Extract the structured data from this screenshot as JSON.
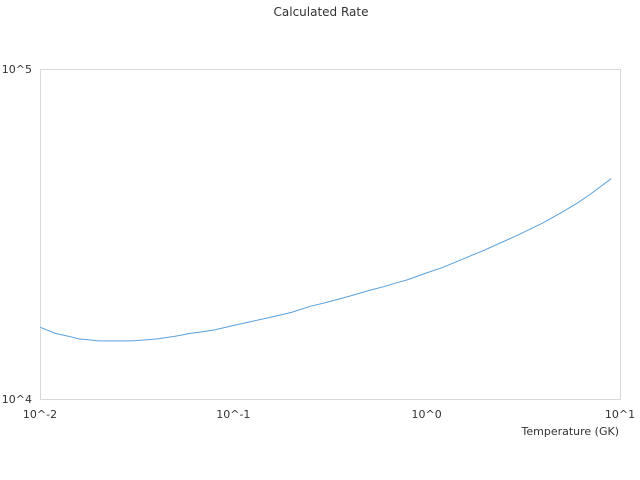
{
  "chart_data": {
    "type": "line",
    "title": "Calculated Rate",
    "xlabel": "Temperature (GK)",
    "ylabel": "",
    "x_scale": "log",
    "y_scale": "log",
    "xlim": [
      0.01,
      10
    ],
    "ylim": [
      10000,
      100000
    ],
    "x_ticks": [
      0.01,
      0.1,
      1,
      10
    ],
    "x_tick_labels": [
      "10^-2",
      "10^-1",
      "10^0",
      "10^1"
    ],
    "y_ticks": [
      10000,
      100000
    ],
    "y_tick_labels": [
      "10^4",
      "10^5"
    ],
    "grid": false,
    "legend": "none",
    "series": [
      {
        "color": "#5aa0dc",
        "x": [
          0.01,
          0.012,
          0.014,
          0.016,
          0.018,
          0.02,
          0.025,
          0.03,
          0.035,
          0.04,
          0.05,
          0.06,
          0.07,
          0.08,
          0.1,
          0.12,
          0.15,
          0.2,
          0.25,
          0.3,
          0.4,
          0.5,
          0.6,
          0.7,
          0.8,
          1.0,
          1.2,
          1.5,
          2.0,
          2.5,
          3.0,
          4.0,
          5.0,
          6.0,
          7.0,
          8.0,
          9.0
        ],
        "y": [
          16500,
          15800,
          15500,
          15200,
          15100,
          15000,
          15000,
          15000,
          15100,
          15200,
          15500,
          15800,
          16000,
          16200,
          16700,
          17100,
          17600,
          18300,
          19100,
          19600,
          20500,
          21300,
          21900,
          22500,
          23000,
          24100,
          25000,
          26400,
          28300,
          30000,
          31500,
          34200,
          36800,
          39200,
          41700,
          44200,
          46500
        ]
      }
    ]
  }
}
